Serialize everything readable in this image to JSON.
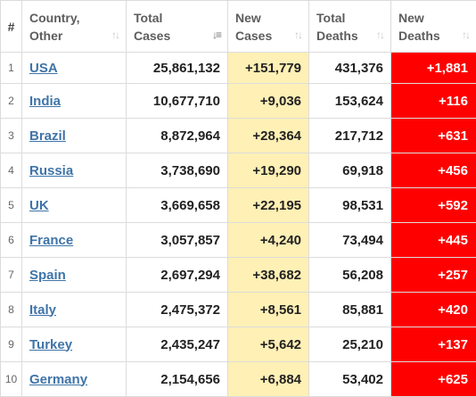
{
  "headers": {
    "num": "#",
    "country": [
      "Country,",
      "Other"
    ],
    "total_cases": [
      "Total",
      "Cases"
    ],
    "new_cases": [
      "New",
      "Cases"
    ],
    "total_deaths": [
      "Total",
      "Deaths"
    ],
    "new_deaths": [
      "New",
      "Deaths"
    ]
  },
  "sort_icons": {
    "inactive": "sort-both-icon",
    "active": "sort-descending-icon",
    "active_column": "total_cases"
  },
  "colors": {
    "new_cases_bg": "#fff0b5",
    "new_deaths_bg": "#ff0000",
    "link": "#3f74a8"
  },
  "rows": [
    {
      "num": "1",
      "country": "USA",
      "total_cases": "25,861,132",
      "new_cases": "+151,779",
      "total_deaths": "431,376",
      "new_deaths": "+1,881"
    },
    {
      "num": "2",
      "country": "India",
      "total_cases": "10,677,710",
      "new_cases": "+9,036",
      "total_deaths": "153,624",
      "new_deaths": "+116"
    },
    {
      "num": "3",
      "country": "Brazil",
      "total_cases": "8,872,964",
      "new_cases": "+28,364",
      "total_deaths": "217,712",
      "new_deaths": "+631"
    },
    {
      "num": "4",
      "country": "Russia",
      "total_cases": "3,738,690",
      "new_cases": "+19,290",
      "total_deaths": "69,918",
      "new_deaths": "+456"
    },
    {
      "num": "5",
      "country": "UK",
      "total_cases": "3,669,658",
      "new_cases": "+22,195",
      "total_deaths": "98,531",
      "new_deaths": "+592"
    },
    {
      "num": "6",
      "country": "France",
      "total_cases": "3,057,857",
      "new_cases": "+4,240",
      "total_deaths": "73,494",
      "new_deaths": "+445"
    },
    {
      "num": "7",
      "country": "Spain",
      "total_cases": "2,697,294",
      "new_cases": "+38,682",
      "total_deaths": "56,208",
      "new_deaths": "+257"
    },
    {
      "num": "8",
      "country": "Italy",
      "total_cases": "2,475,372",
      "new_cases": "+8,561",
      "total_deaths": "85,881",
      "new_deaths": "+420"
    },
    {
      "num": "9",
      "country": "Turkey",
      "total_cases": "2,435,247",
      "new_cases": "+5,642",
      "total_deaths": "25,210",
      "new_deaths": "+137"
    },
    {
      "num": "10",
      "country": "Germany",
      "total_cases": "2,154,656",
      "new_cases": "+6,884",
      "total_deaths": "53,402",
      "new_deaths": "+625"
    }
  ]
}
